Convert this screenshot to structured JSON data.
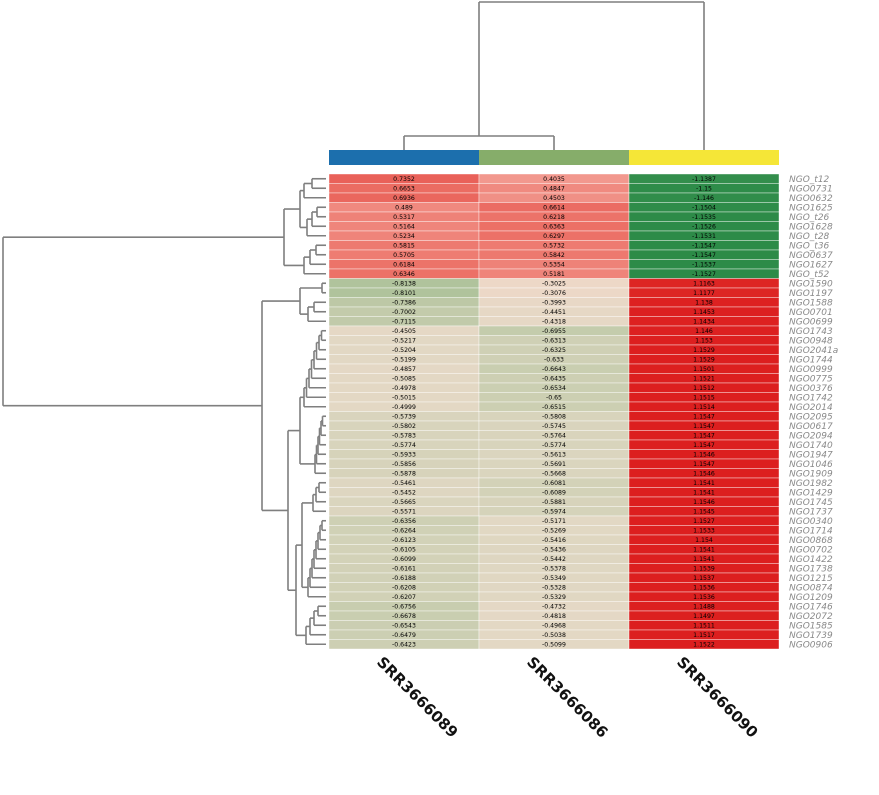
{
  "chart_data": {
    "type": "heatmap",
    "title": "",
    "xlabel": "",
    "ylabel": "",
    "columns": [
      "SRR3666089",
      "SRR3666086",
      "SRR3666090"
    ],
    "column_annotation_colors": [
      "#1c6fad",
      "#86ad6a",
      "#f5e637"
    ],
    "rows": [
      {
        "label": "NGO_t12",
        "values": [
          "0.7352",
          "0.4035",
          "-1.1387"
        ]
      },
      {
        "label": "NGO0731",
        "values": [
          "0.6653",
          "0.4847",
          "-1.15"
        ]
      },
      {
        "label": "NGO0632",
        "values": [
          "0.6936",
          "0.4503",
          "-1.146"
        ]
      },
      {
        "label": "NGO1625",
        "values": [
          "0.489",
          "0.6614",
          "-1.1504"
        ]
      },
      {
        "label": "NGO_t26",
        "values": [
          "0.5317",
          "0.6218",
          "-1.1535"
        ]
      },
      {
        "label": "NGO1628",
        "values": [
          "0.5164",
          "0.6363",
          "-1.1526"
        ]
      },
      {
        "label": "NGO_t28",
        "values": [
          "0.5234",
          "0.6297",
          "-1.1531"
        ]
      },
      {
        "label": "NGO_t36",
        "values": [
          "0.5815",
          "0.5732",
          "-1.1547"
        ]
      },
      {
        "label": "NGO0637",
        "values": [
          "0.5705",
          "0.5842",
          "-1.1547"
        ]
      },
      {
        "label": "NGO1627",
        "values": [
          "0.6184",
          "0.5354",
          "-1.1537"
        ]
      },
      {
        "label": "NGO_t52",
        "values": [
          "0.6346",
          "0.5181",
          "-1.1527"
        ]
      },
      {
        "label": "NGO1590",
        "values": [
          "-0.8138",
          "-0.3025",
          "1.1163"
        ]
      },
      {
        "label": "NGO1197",
        "values": [
          "-0.8101",
          "-0.3076",
          "1.1177"
        ]
      },
      {
        "label": "NGO1588",
        "values": [
          "-0.7386",
          "-0.3993",
          "1.138"
        ]
      },
      {
        "label": "NGO0701",
        "values": [
          "-0.7002",
          "-0.4451",
          "1.1453"
        ]
      },
      {
        "label": "NGO0699",
        "values": [
          "-0.7115",
          "-0.4318",
          "1.1434"
        ]
      },
      {
        "label": "NGO1743",
        "values": [
          "-0.4505",
          "-0.6955",
          "1.146"
        ]
      },
      {
        "label": "NGO0948",
        "values": [
          "-0.5217",
          "-0.6313",
          "1.153"
        ]
      },
      {
        "label": "NGO2041a",
        "values": [
          "-0.5204",
          "-0.6325",
          "1.1529"
        ]
      },
      {
        "label": "NGO1744",
        "values": [
          "-0.5199",
          "-0.633",
          "1.1529"
        ]
      },
      {
        "label": "NGO0999",
        "values": [
          "-0.4857",
          "-0.6643",
          "1.1501"
        ]
      },
      {
        "label": "NGO0775",
        "values": [
          "-0.5085",
          "-0.6435",
          "1.1521"
        ]
      },
      {
        "label": "NGO0376",
        "values": [
          "-0.4978",
          "-0.6534",
          "1.1512"
        ]
      },
      {
        "label": "NGO1742",
        "values": [
          "-0.5015",
          "-0.65",
          "1.1515"
        ]
      },
      {
        "label": "NGO2014",
        "values": [
          "-0.4999",
          "-0.6515",
          "1.1514"
        ]
      },
      {
        "label": "NGO2095",
        "values": [
          "-0.5739",
          "-0.5808",
          "1.1547"
        ]
      },
      {
        "label": "NGO0617",
        "values": [
          "-0.5802",
          "-0.5745",
          "1.1547"
        ]
      },
      {
        "label": "NGO2094",
        "values": [
          "-0.5783",
          "-0.5764",
          "1.1547"
        ]
      },
      {
        "label": "NGO1740",
        "values": [
          "-0.5774",
          "-0.5774",
          "1.1547"
        ]
      },
      {
        "label": "NGO1947",
        "values": [
          "-0.5933",
          "-0.5613",
          "1.1546"
        ]
      },
      {
        "label": "NGO1046",
        "values": [
          "-0.5856",
          "-0.5691",
          "1.1547"
        ]
      },
      {
        "label": "NGO1909",
        "values": [
          "-0.5878",
          "-0.5668",
          "1.1546"
        ]
      },
      {
        "label": "NGO1982",
        "values": [
          "-0.5461",
          "-0.6081",
          "1.1541"
        ]
      },
      {
        "label": "NGO1429",
        "values": [
          "-0.5452",
          "-0.6089",
          "1.1541"
        ]
      },
      {
        "label": "NGO1745",
        "values": [
          "-0.5665",
          "-0.5881",
          "1.1546"
        ]
      },
      {
        "label": "NGO1737",
        "values": [
          "-0.5571",
          "-0.5974",
          "1.1545"
        ]
      },
      {
        "label": "NGO0340",
        "values": [
          "-0.6356",
          "-0.5171",
          "1.1527"
        ]
      },
      {
        "label": "NGO1714",
        "values": [
          "-0.6264",
          "-0.5269",
          "1.1533"
        ]
      },
      {
        "label": "NGO0868",
        "values": [
          "-0.6123",
          "-0.5416",
          "1.154"
        ]
      },
      {
        "label": "NGO0702",
        "values": [
          "-0.6105",
          "-0.5436",
          "1.1541"
        ]
      },
      {
        "label": "NGO1422",
        "values": [
          "-0.6099",
          "-0.5442",
          "1.1541"
        ]
      },
      {
        "label": "NGO1738",
        "values": [
          "-0.6161",
          "-0.5378",
          "1.1539"
        ]
      },
      {
        "label": "NGO1215",
        "values": [
          "-0.6188",
          "-0.5349",
          "1.1537"
        ]
      },
      {
        "label": "NGO0874",
        "values": [
          "-0.6208",
          "-0.5328",
          "1.1536"
        ]
      },
      {
        "label": "NGO1209",
        "values": [
          "-0.6207",
          "-0.5329",
          "1.1536"
        ]
      },
      {
        "label": "NGO1746",
        "values": [
          "-0.6756",
          "-0.4732",
          "1.1488"
        ]
      },
      {
        "label": "NGO2072",
        "values": [
          "-0.6678",
          "-0.4818",
          "1.1497"
        ]
      },
      {
        "label": "NGO1585",
        "values": [
          "-0.6543",
          "-0.4968",
          "1.1511"
        ]
      },
      {
        "label": "NGO1739",
        "values": [
          "-0.6479",
          "-0.5038",
          "1.1517"
        ]
      },
      {
        "label": "NGO0906",
        "values": [
          "-0.6423",
          "-0.5099",
          "1.1522"
        ]
      }
    ],
    "color_scale": {
      "low": "#2a8a46",
      "mid": "#ffffff",
      "high": "#dc1e1e"
    },
    "grid": false,
    "legend": "none"
  }
}
